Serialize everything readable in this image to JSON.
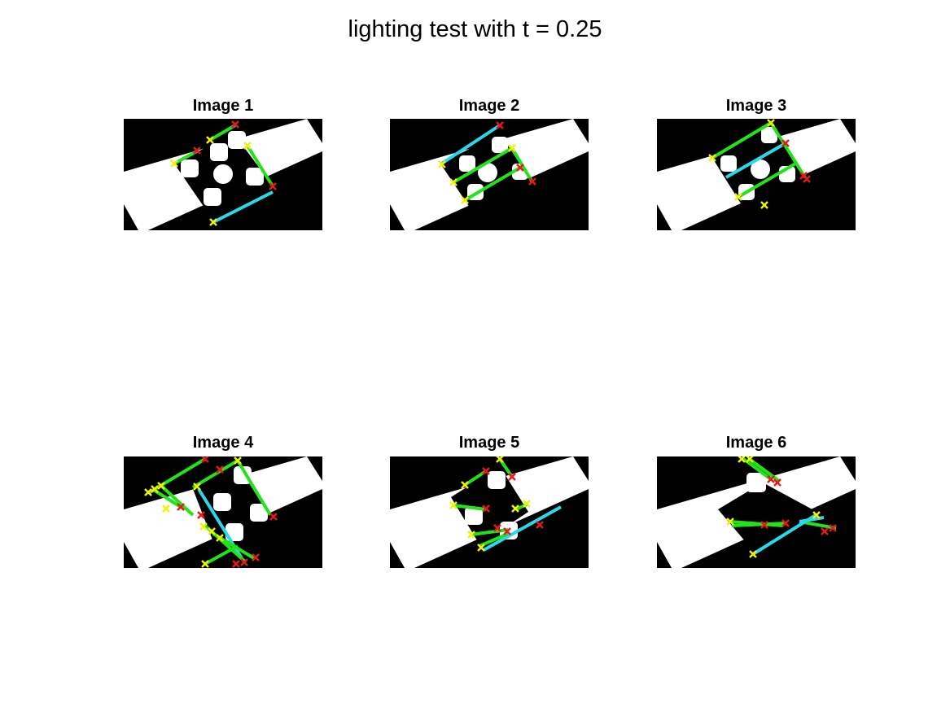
{
  "figure": {
    "title": "lighting test with t = 0.25"
  },
  "panels": [
    {
      "title": "Image 1"
    },
    {
      "title": "Image 2"
    },
    {
      "title": "Image 3"
    },
    {
      "title": "Image 4"
    },
    {
      "title": "Image 5"
    },
    {
      "title": "Image 6"
    }
  ],
  "colors": {
    "background": "#ffffff",
    "image_dark": "#000000",
    "image_light": "#ffffff",
    "line_green": "#22e21a",
    "line_cyan": "#2ad8e8",
    "marker_yellow": "#f2f20a",
    "marker_red": "#e8181a"
  }
}
